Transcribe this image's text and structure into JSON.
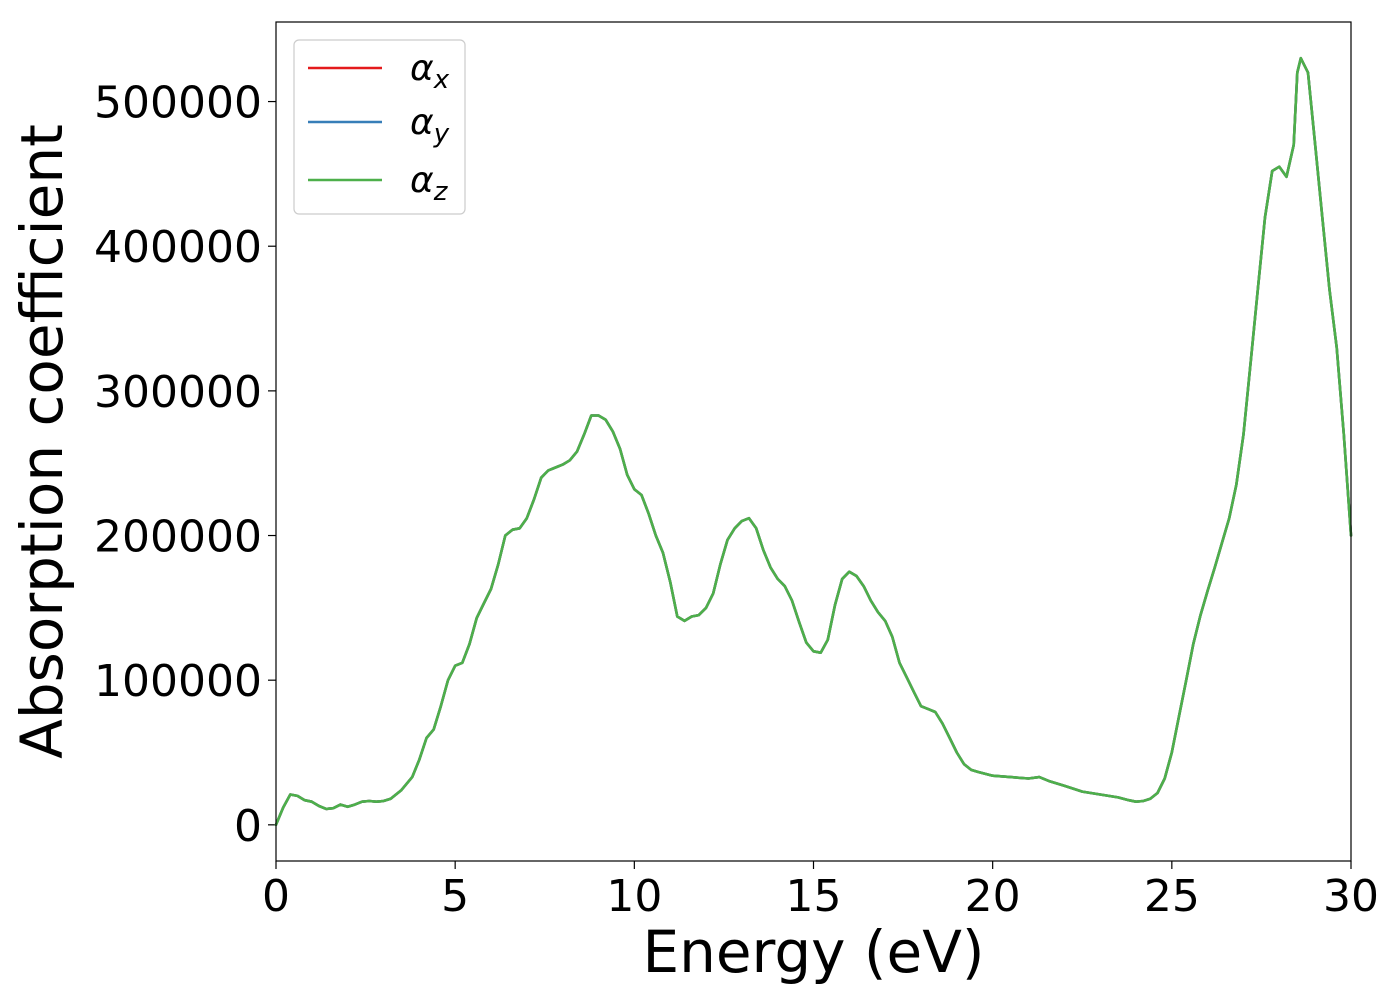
{
  "chart_data": {
    "type": "line",
    "title": "",
    "xlabel": "Energy (eV)",
    "ylabel": "Absorption coefficient",
    "xlim": [
      0,
      30
    ],
    "ylim": [
      -25000,
      555000
    ],
    "xticks": [
      0,
      5,
      10,
      15,
      20,
      25,
      30
    ],
    "yticks": [
      0,
      100000,
      200000,
      300000,
      400000,
      500000
    ],
    "grid": false,
    "legend_position": "upper-left",
    "x": [
      0,
      0.2,
      0.4,
      0.6,
      0.8,
      1.0,
      1.2,
      1.4,
      1.6,
      1.8,
      2.0,
      2.2,
      2.4,
      2.6,
      2.8,
      3.0,
      3.2,
      3.5,
      3.8,
      4.0,
      4.2,
      4.4,
      4.6,
      4.8,
      5.0,
      5.2,
      5.4,
      5.6,
      5.8,
      6.0,
      6.2,
      6.4,
      6.6,
      6.8,
      7.0,
      7.2,
      7.4,
      7.6,
      7.8,
      8.0,
      8.2,
      8.4,
      8.6,
      8.8,
      9.0,
      9.2,
      9.4,
      9.6,
      9.8,
      10.0,
      10.2,
      10.4,
      10.6,
      10.8,
      11.0,
      11.2,
      11.4,
      11.6,
      11.8,
      12.0,
      12.2,
      12.4,
      12.6,
      12.8,
      13.0,
      13.2,
      13.4,
      13.6,
      13.8,
      14.0,
      14.2,
      14.4,
      14.6,
      14.8,
      15.0,
      15.2,
      15.4,
      15.6,
      15.8,
      16.0,
      16.2,
      16.4,
      16.6,
      16.8,
      17.0,
      17.2,
      17.4,
      17.6,
      17.8,
      18.0,
      18.2,
      18.4,
      18.6,
      18.8,
      19.0,
      19.2,
      19.4,
      19.6,
      20.0,
      20.5,
      21.0,
      21.3,
      21.6,
      22.0,
      22.5,
      23.0,
      23.5,
      23.8,
      24.0,
      24.2,
      24.4,
      24.6,
      24.8,
      25.0,
      25.2,
      25.4,
      25.6,
      25.8,
      26.0,
      26.2,
      26.4,
      26.6,
      26.8,
      27.0,
      27.2,
      27.4,
      27.6,
      27.8,
      28.0,
      28.2,
      28.4,
      28.5,
      28.6,
      28.8,
      29.0,
      29.2,
      29.4,
      29.6,
      29.8,
      30.0
    ],
    "series": [
      {
        "name": "αx",
        "color": "#e41a1c",
        "values": [
          0,
          12000,
          21000,
          20000,
          17000,
          16000,
          13000,
          11000,
          11500,
          14000,
          12500,
          14000,
          16000,
          16500,
          16000,
          16500,
          18000,
          24000,
          33000,
          45000,
          60000,
          66000,
          82000,
          100000,
          110000,
          112000,
          125000,
          143000,
          153000,
          163000,
          180000,
          200000,
          204000,
          205000,
          212000,
          225000,
          240000,
          245000,
          247000,
          249000,
          252000,
          258000,
          270000,
          283000,
          283000,
          280000,
          272000,
          260000,
          242000,
          232000,
          228000,
          215000,
          200000,
          188000,
          168000,
          144000,
          141000,
          144000,
          145000,
          150000,
          160000,
          180000,
          197000,
          205000,
          210000,
          212000,
          205000,
          190000,
          178000,
          170000,
          165000,
          155000,
          140000,
          126000,
          120000,
          119000,
          128000,
          152000,
          170000,
          175000,
          172000,
          165000,
          155000,
          147000,
          141000,
          130000,
          112000,
          102000,
          92000,
          82000,
          80000,
          78000,
          70000,
          60000,
          50000,
          42000,
          38000,
          36500,
          34000,
          33000,
          32000,
          33000,
          30000,
          27000,
          23000,
          21000,
          19000,
          17000,
          16000,
          16500,
          18000,
          22000,
          32000,
          50000,
          75000,
          100000,
          125000,
          145000,
          162000,
          178000,
          195000,
          212000,
          235000,
          270000,
          320000,
          370000,
          420000,
          452000,
          455000,
          448000,
          470000,
          520000,
          530000,
          520000,
          470000,
          420000,
          370000,
          330000,
          270000,
          200000
        ]
      },
      {
        "name": "αy",
        "color": "#377eb8",
        "values": [
          0,
          12000,
          21000,
          20000,
          17000,
          16000,
          13000,
          11000,
          11500,
          14000,
          12500,
          14000,
          16000,
          16500,
          16000,
          16500,
          18000,
          24000,
          33000,
          45000,
          60000,
          66000,
          82000,
          100000,
          110000,
          112000,
          125000,
          143000,
          153000,
          163000,
          180000,
          200000,
          204000,
          205000,
          212000,
          225000,
          240000,
          245000,
          247000,
          249000,
          252000,
          258000,
          270000,
          283000,
          283000,
          280000,
          272000,
          260000,
          242000,
          232000,
          228000,
          215000,
          200000,
          188000,
          168000,
          144000,
          141000,
          144000,
          145000,
          150000,
          160000,
          180000,
          197000,
          205000,
          210000,
          212000,
          205000,
          190000,
          178000,
          170000,
          165000,
          155000,
          140000,
          126000,
          120000,
          119000,
          128000,
          152000,
          170000,
          175000,
          172000,
          165000,
          155000,
          147000,
          141000,
          130000,
          112000,
          102000,
          92000,
          82000,
          80000,
          78000,
          70000,
          60000,
          50000,
          42000,
          38000,
          36500,
          34000,
          33000,
          32000,
          33000,
          30000,
          27000,
          23000,
          21000,
          19000,
          17000,
          16000,
          16500,
          18000,
          22000,
          32000,
          50000,
          75000,
          100000,
          125000,
          145000,
          162000,
          178000,
          195000,
          212000,
          235000,
          270000,
          320000,
          370000,
          420000,
          452000,
          455000,
          448000,
          470000,
          520000,
          530000,
          520000,
          470000,
          420000,
          370000,
          330000,
          270000,
          200000
        ]
      },
      {
        "name": "αz",
        "color": "#4daf4a",
        "values": [
          0,
          12000,
          21000,
          20000,
          17000,
          16000,
          13000,
          11000,
          11500,
          14000,
          12500,
          14000,
          16000,
          16500,
          16000,
          16500,
          18000,
          24000,
          33000,
          45000,
          60000,
          66000,
          82000,
          100000,
          110000,
          112000,
          125000,
          143000,
          153000,
          163000,
          180000,
          200000,
          204000,
          205000,
          212000,
          225000,
          240000,
          245000,
          247000,
          249000,
          252000,
          258000,
          270000,
          283000,
          283000,
          280000,
          272000,
          260000,
          242000,
          232000,
          228000,
          215000,
          200000,
          188000,
          168000,
          144000,
          141000,
          144000,
          145000,
          150000,
          160000,
          180000,
          197000,
          205000,
          210000,
          212000,
          205000,
          190000,
          178000,
          170000,
          165000,
          155000,
          140000,
          126000,
          120000,
          119000,
          128000,
          152000,
          170000,
          175000,
          172000,
          165000,
          155000,
          147000,
          141000,
          130000,
          112000,
          102000,
          92000,
          82000,
          80000,
          78000,
          70000,
          60000,
          50000,
          42000,
          38000,
          36500,
          34000,
          33000,
          32000,
          33000,
          30000,
          27000,
          23000,
          21000,
          19000,
          17000,
          16000,
          16500,
          18000,
          22000,
          32000,
          50000,
          75000,
          100000,
          125000,
          145000,
          162000,
          178000,
          195000,
          212000,
          235000,
          270000,
          320000,
          370000,
          420000,
          452000,
          455000,
          448000,
          470000,
          520000,
          530000,
          520000,
          470000,
          420000,
          370000,
          330000,
          270000,
          200000
        ]
      }
    ],
    "legend": [
      {
        "symbol": "α",
        "sub": "x"
      },
      {
        "symbol": "α",
        "sub": "y"
      },
      {
        "symbol": "α",
        "sub": "z"
      }
    ]
  }
}
